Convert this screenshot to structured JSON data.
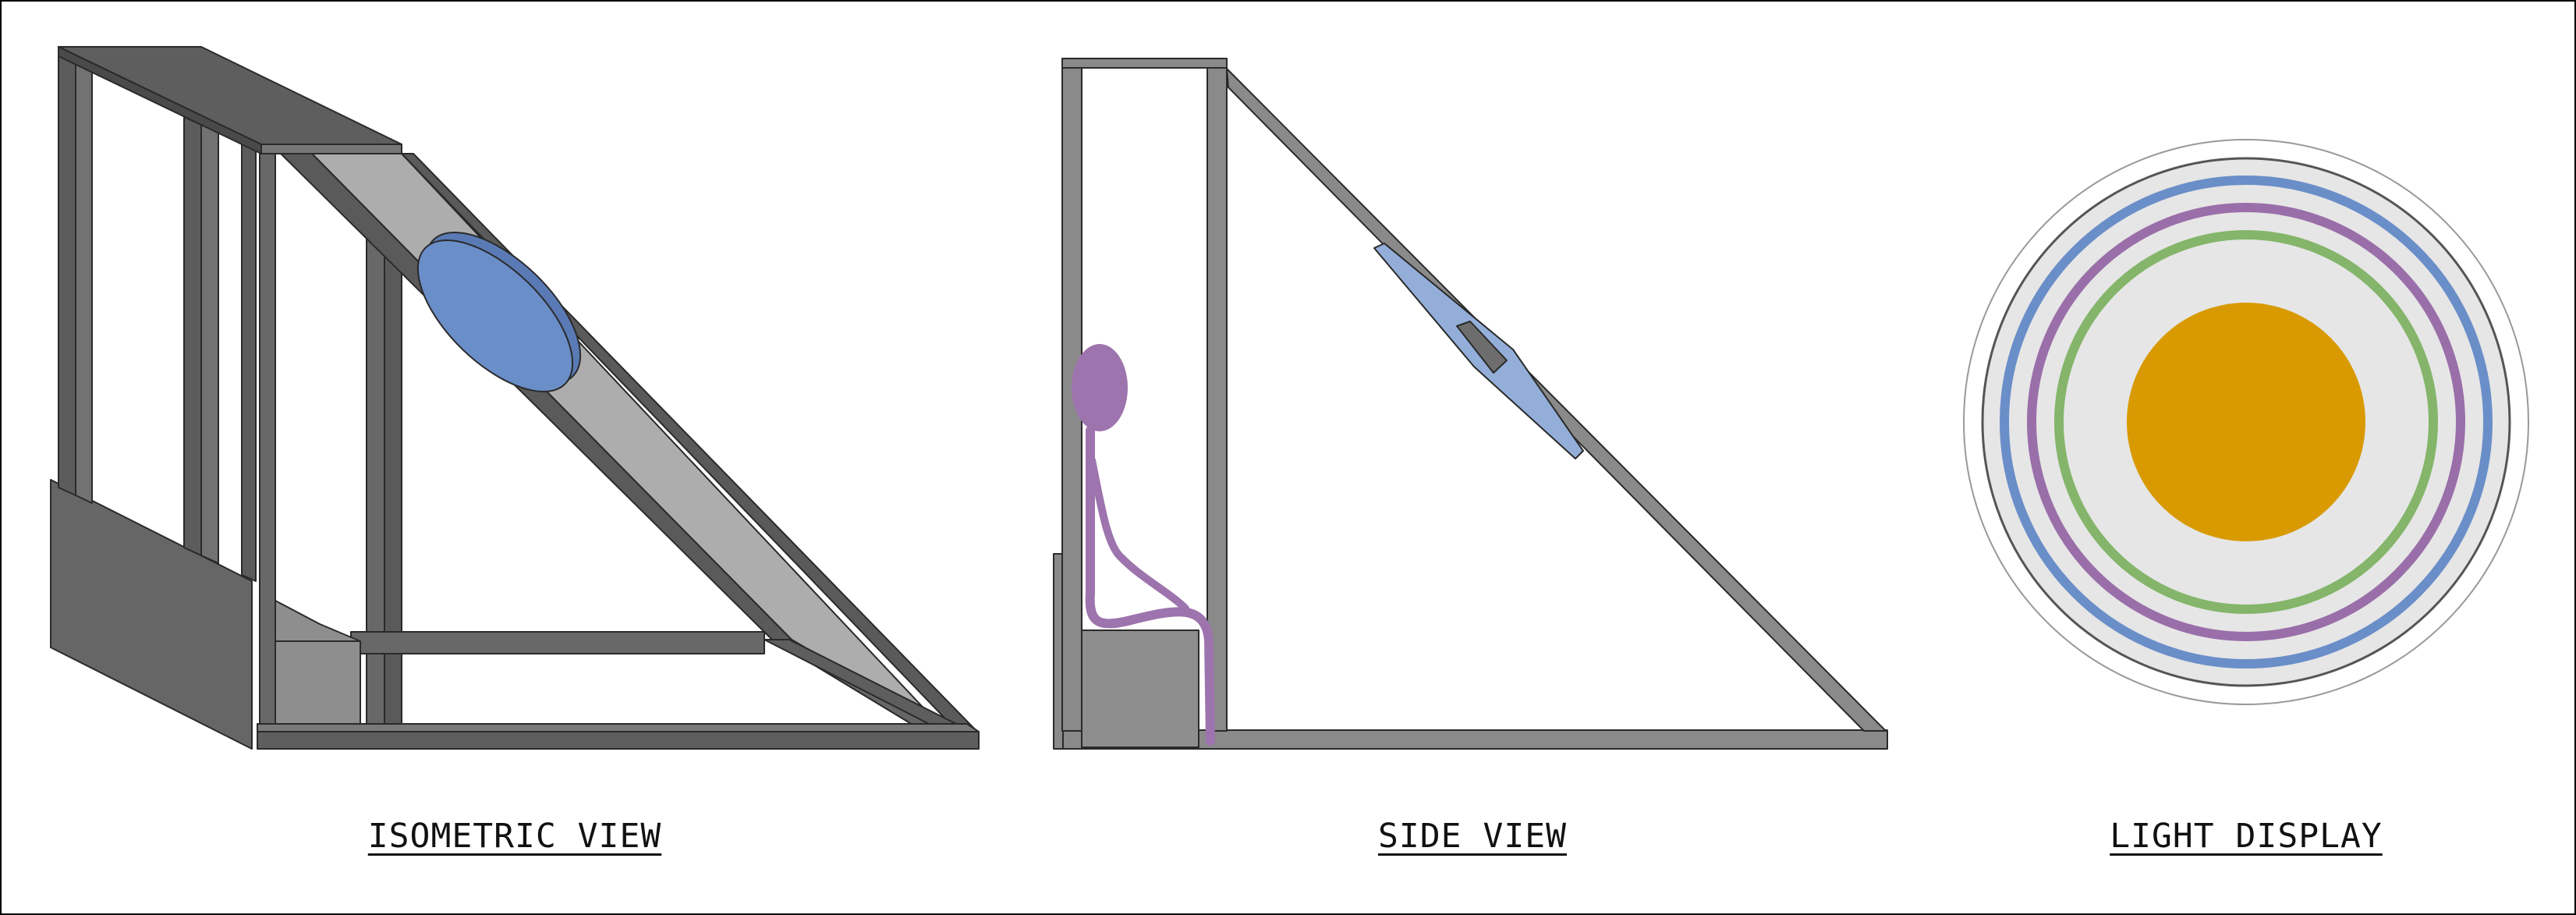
{
  "captions": {
    "isometric": "ISOMETRIC VIEW",
    "side": "SIDE VIEW",
    "light": "LIGHT DISPLAY"
  },
  "colors": {
    "frame_dark": "#616161",
    "frame_side": "#8a8a8a",
    "panel": "#adadad",
    "block": "#8e8e8e",
    "mirror_blue": "#6a8ec8",
    "mirror_blue_light": "#93afd9",
    "person_purple": "#9d74ad",
    "ring_blue": "#6a8ec8",
    "ring_purple": "#9a6fa9",
    "ring_green": "#84b56a",
    "sun_orange": "#d89a00",
    "disc_gray": "#e6e6e6"
  }
}
